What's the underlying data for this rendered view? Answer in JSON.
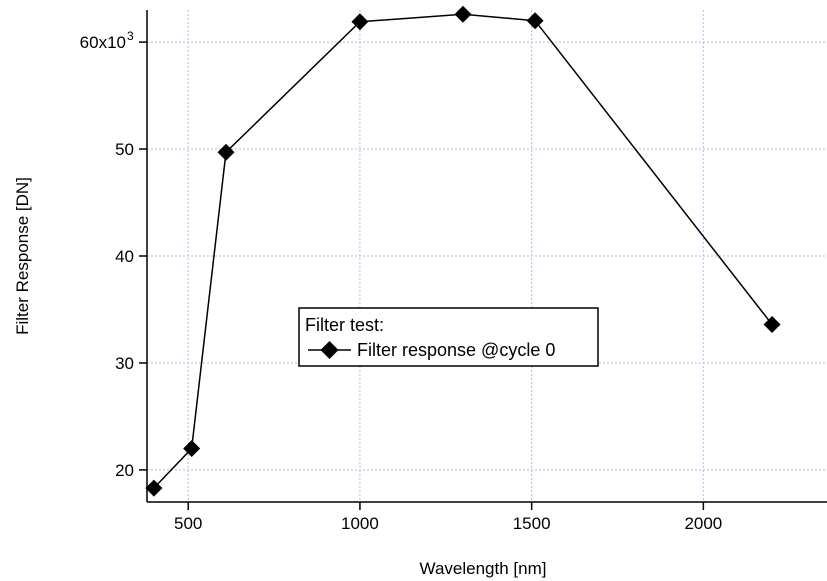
{
  "chart_data": {
    "type": "line",
    "xlabel": "Wavelength [nm]",
    "ylabel": "Filter Response [DN]",
    "xlim": [
      380,
      2360
    ],
    "ylim": [
      17000,
      63000
    ],
    "x_ticks": [
      500,
      1000,
      1500,
      2000
    ],
    "x_tick_labels": [
      "500",
      "1000",
      "1500",
      "2000"
    ],
    "y_ticks": [
      20000,
      30000,
      40000,
      50000,
      60000
    ],
    "y_tick_labels": [
      "20",
      "30",
      "40",
      "50",
      "60x10"
    ],
    "y_exponent_label": "3",
    "grid": true,
    "legend": {
      "title": "Filter test:",
      "placement": "center"
    },
    "series": [
      {
        "name": "Filter response @cycle 0",
        "marker": "diamond",
        "color": "#000000",
        "x": [
          400,
          510,
          610,
          1000,
          1300,
          1510,
          2200
        ],
        "y": [
          18300,
          22000,
          49700,
          61900,
          62600,
          62000,
          33600
        ]
      }
    ]
  }
}
